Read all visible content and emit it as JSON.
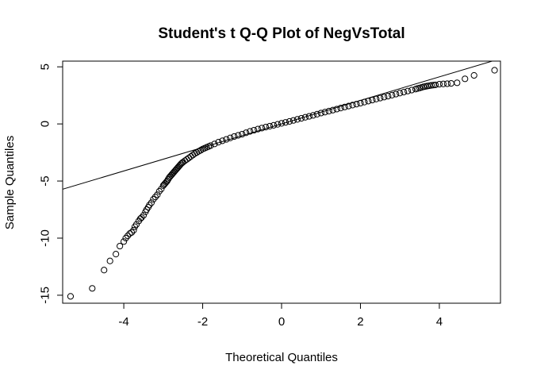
{
  "chart_data": {
    "type": "scatter",
    "title": "Student's t Q-Q Plot of NegVsTotal",
    "xlabel": "Theoretical Quantiles",
    "ylabel": "Sample Quantiles",
    "xlim": [
      -5.55,
      5.55
    ],
    "ylim": [
      -15.7,
      5.5
    ],
    "x_ticks": [
      -4,
      -2,
      0,
      2,
      4
    ],
    "x_tick_labels": [
      "-4",
      "-2",
      "0",
      "2",
      "4"
    ],
    "y_ticks": [
      -15,
      -10,
      -5,
      0,
      5
    ],
    "y_tick_labels": [
      "-15",
      "-10",
      "-5",
      "0",
      "5"
    ],
    "grid": false,
    "reference_line": {
      "intercept": 0.0,
      "slope": 1.03
    },
    "points": {
      "x": [
        -5.35,
        -4.8,
        -4.5,
        -4.35,
        -4.2,
        -4.1,
        -4.0,
        -3.95,
        -3.9,
        -3.85,
        -3.8,
        -3.75,
        -3.72,
        -3.68,
        -3.62,
        -3.58,
        -3.55,
        -3.5,
        -3.45,
        -3.42,
        -3.38,
        -3.35,
        -3.3,
        -3.25,
        -3.2,
        -3.15,
        -3.1,
        -3.05,
        -3.0,
        -2.95,
        -2.9,
        -2.85,
        -2.8,
        -2.75,
        -2.7,
        -2.65,
        -2.6,
        -2.55,
        -2.5,
        -2.4,
        -2.3,
        -2.2,
        -2.1,
        -2.0,
        -1.9,
        -1.8,
        -1.6,
        -1.4,
        -1.2,
        -1.0,
        -0.8,
        -0.6,
        -0.4,
        -0.2,
        0.0,
        0.2,
        0.4,
        0.6,
        0.8,
        1.0,
        1.2,
        1.4,
        1.6,
        1.8,
        2.0,
        2.2,
        2.4,
        2.6,
        2.8,
        3.0,
        3.2,
        3.4,
        3.5,
        3.6,
        3.7,
        3.8,
        3.9,
        4.0,
        4.1,
        4.2,
        4.3,
        4.45,
        4.65,
        4.88,
        5.4
      ],
      "y": [
        -15.1,
        -14.4,
        -12.8,
        -12.0,
        -11.4,
        -10.7,
        -10.3,
        -10.0,
        -9.8,
        -9.6,
        -9.5,
        -9.3,
        -9.0,
        -8.8,
        -8.5,
        -8.3,
        -8.2,
        -8.0,
        -7.7,
        -7.5,
        -7.3,
        -7.1,
        -6.9,
        -6.6,
        -6.4,
        -6.2,
        -5.9,
        -5.7,
        -5.4,
        -5.2,
        -5.0,
        -4.7,
        -4.5,
        -4.3,
        -4.1,
        -3.9,
        -3.7,
        -3.5,
        -3.35,
        -3.1,
        -2.85,
        -2.6,
        -2.4,
        -2.2,
        -2.05,
        -1.9,
        -1.6,
        -1.35,
        -1.1,
        -0.9,
        -0.65,
        -0.45,
        -0.28,
        -0.12,
        0.05,
        0.22,
        0.4,
        0.58,
        0.75,
        0.95,
        1.12,
        1.3,
        1.48,
        1.65,
        1.82,
        2.0,
        2.18,
        2.35,
        2.52,
        2.7,
        2.88,
        3.05,
        3.15,
        3.25,
        3.32,
        3.38,
        3.42,
        3.48,
        3.5,
        3.52,
        3.55,
        3.6,
        3.95,
        4.25,
        4.7
      ]
    }
  }
}
